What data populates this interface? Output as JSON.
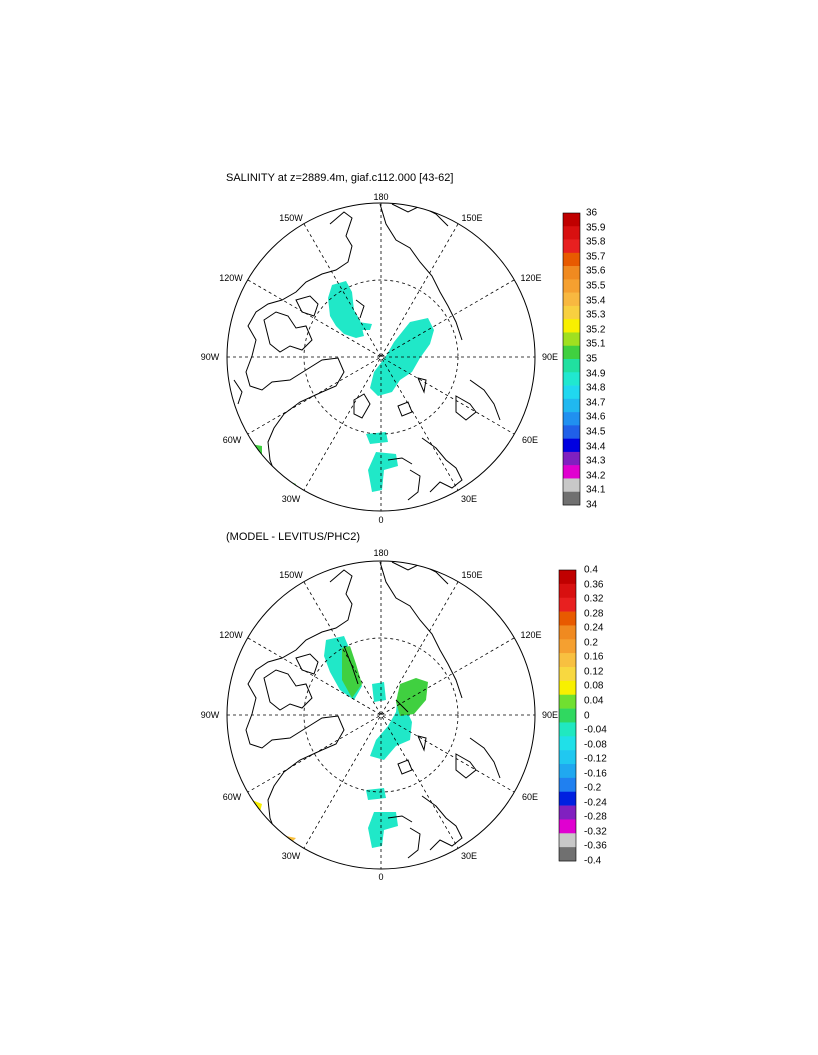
{
  "panels": [
    {
      "title": "SALINITY at z=2889.4m, giaf.c112.000 [43-62]",
      "lon_labels": {
        "top": "180",
        "bottom": "0",
        "left": "90W",
        "right": "90E",
        "ul1": "150W",
        "ul2": "120W",
        "ur1": "150E",
        "ur2": "120E",
        "ll1": "60W",
        "ll2": "30W",
        "lr1": "60E",
        "lr2": "30E"
      },
      "colorbar": {
        "labels": [
          "36",
          "35.9",
          "35.8",
          "35.7",
          "35.6",
          "35.5",
          "35.4",
          "35.3",
          "35.2",
          "35.1",
          "35",
          "34.9",
          "34.8",
          "34.7",
          "34.6",
          "34.5",
          "34.4",
          "34.3",
          "34.2",
          "34.1",
          "34"
        ],
        "colors": [
          "#c00000",
          "#d81010",
          "#e82020",
          "#e85a00",
          "#f08a20",
          "#f5a030",
          "#f8b840",
          "#f8d040",
          "#f8f000",
          "#a0e020",
          "#40d040",
          "#20e0a0",
          "#20e8d0",
          "#20d8f0",
          "#20b8f0",
          "#2090f0",
          "#2060e8",
          "#0000e0",
          "#8020c0",
          "#e000d0",
          "#c8c8c8",
          "#707070"
        ]
      }
    },
    {
      "title": "(MODEL - LEVITUS/PHC2)",
      "lon_labels": {
        "top": "180",
        "bottom": "0",
        "left": "90W",
        "right": "90E",
        "ul1": "150W",
        "ul2": "120W",
        "ur1": "150E",
        "ur2": "120E",
        "ll1": "60W",
        "ll2": "30W",
        "lr1": "60E",
        "lr2": "30E"
      },
      "colorbar": {
        "labels": [
          "0.4",
          "0.36",
          "0.32",
          "0.28",
          "0.24",
          "0.2",
          "0.16",
          "0.12",
          "0.08",
          "0.04",
          "0",
          "-0.04",
          "-0.08",
          "-0.12",
          "-0.16",
          "-0.2",
          "-0.24",
          "-0.28",
          "-0.32",
          "-0.36",
          "-0.4"
        ],
        "colors": [
          "#c00000",
          "#d81010",
          "#e82020",
          "#e85a00",
          "#f08a20",
          "#f5a030",
          "#f8c040",
          "#f8d840",
          "#f8f000",
          "#70e030",
          "#30d860",
          "#20e8c0",
          "#20e0e8",
          "#20c8f0",
          "#20a8f0",
          "#2080f0",
          "#0020e0",
          "#8020c0",
          "#e000d0",
          "#c8c8c8",
          "#707070"
        ]
      }
    }
  ]
}
